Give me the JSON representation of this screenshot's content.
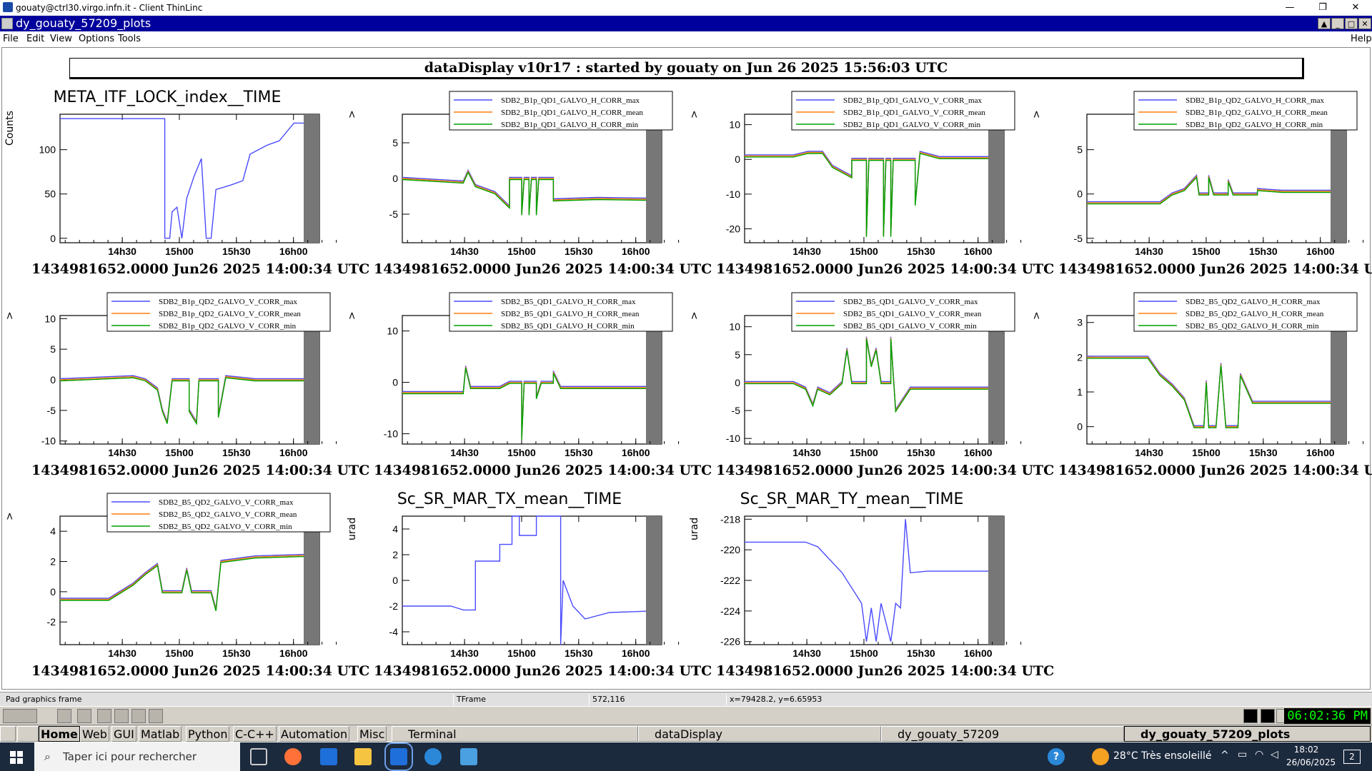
{
  "titlebar": {
    "title": "gouaty@ctrl30.virgo.infn.it - Client ThinLinc",
    "min": "—",
    "max": "❐",
    "close": "✕"
  },
  "root_window": {
    "title": "dy_gouaty_57209_plots"
  },
  "menu": {
    "file": "File",
    "edit": "Edit",
    "view": "View",
    "options": "Options",
    "tools": "Tools",
    "help": "Help"
  },
  "banner": "dataDisplay v10r17 : started by gouaty on Jun 26 2025 15:56:03 UTC",
  "time_labels": [
    "14h30",
    "15h00",
    "15h30",
    "16h00"
  ],
  "stamp": "1434981652.0000 Jun26 2025 14:00:34 UTC",
  "colors": {
    "max": "#4b4bff",
    "mean": "#ff7f0e",
    "min": "#00a000",
    "gray_band": "#777777",
    "root_title_bar": "#00009c"
  },
  "chart_data": [
    {
      "type": "line",
      "title": "META_ITF_LOCK_index__TIME",
      "ylabel": "Counts",
      "yticks": [
        "100",
        "50",
        "0"
      ],
      "ylim": [
        -5,
        140
      ],
      "series": [
        {
          "values": [
            [
              0,
              135
            ],
            [
              0.43,
              135
            ],
            [
              0.43,
              0
            ],
            [
              0.45,
              0
            ],
            [
              0.46,
              30
            ],
            [
              0.48,
              35
            ],
            [
              0.5,
              0
            ],
            [
              0.52,
              45
            ],
            [
              0.55,
              70
            ],
            [
              0.58,
              90
            ],
            [
              0.6,
              0
            ],
            [
              0.62,
              0
            ],
            [
              0.64,
              55
            ],
            [
              0.7,
              60
            ],
            [
              0.75,
              65
            ],
            [
              0.78,
              95
            ],
            [
              0.85,
              105
            ],
            [
              0.9,
              110
            ],
            [
              0.93,
              120
            ],
            [
              0.96,
              130
            ],
            [
              1,
              130
            ]
          ]
        }
      ]
    },
    {
      "type": "line",
      "ylabel": ">",
      "legend": [
        "SDB2_B1p_QD1_GALVO_H_CORR_max",
        "SDB2_B1p_QD1_GALVO_H_CORR_mean",
        "SDB2_B1p_QD1_GALVO_H_CORR_min"
      ],
      "yticks": [
        "5",
        "0",
        "-5"
      ],
      "ylim": [
        -9,
        9
      ],
      "series": [
        {
          "values": [
            [
              0,
              0
            ],
            [
              0.25,
              -0.5
            ],
            [
              0.27,
              1
            ],
            [
              0.3,
              -1
            ],
            [
              0.38,
              -2
            ],
            [
              0.44,
              -4
            ],
            [
              0.44,
              0
            ],
            [
              0.49,
              0
            ],
            [
              0.49,
              -5
            ],
            [
              0.5,
              0
            ],
            [
              0.52,
              0
            ],
            [
              0.52,
              -5
            ],
            [
              0.53,
              0
            ],
            [
              0.55,
              0
            ],
            [
              0.55,
              -5
            ],
            [
              0.56,
              0
            ],
            [
              0.62,
              0
            ],
            [
              0.62,
              -3
            ],
            [
              0.8,
              -2.8
            ],
            [
              1,
              -2.9
            ]
          ]
        }
      ]
    },
    {
      "type": "line",
      "ylabel": ">",
      "legend": [
        "SDB2_B1p_QD1_GALVO_V_CORR_max",
        "SDB2_B1p_QD1_GALVO_V_CORR_mean",
        "SDB2_B1p_QD1_GALVO_V_CORR_min"
      ],
      "yticks": [
        "10",
        "0",
        "-10",
        "-20"
      ],
      "ylim": [
        -24,
        13
      ],
      "series": [
        {
          "values": [
            [
              0,
              1
            ],
            [
              0.2,
              1
            ],
            [
              0.26,
              2
            ],
            [
              0.32,
              2
            ],
            [
              0.36,
              -2
            ],
            [
              0.44,
              -5
            ],
            [
              0.44,
              0
            ],
            [
              0.5,
              0
            ],
            [
              0.5,
              -22
            ],
            [
              0.51,
              0
            ],
            [
              0.57,
              0
            ],
            [
              0.57,
              -22
            ],
            [
              0.58,
              0
            ],
            [
              0.6,
              0
            ],
            [
              0.6,
              -22
            ],
            [
              0.61,
              0
            ],
            [
              0.7,
              0
            ],
            [
              0.7,
              -13
            ],
            [
              0.72,
              2
            ],
            [
              0.8,
              0.5
            ],
            [
              1,
              0.5
            ]
          ]
        }
      ]
    },
    {
      "type": "line",
      "ylabel": ">",
      "legend": [
        "SDB2_B1p_QD2_GALVO_H_CORR_max",
        "SDB2_B1p_QD2_GALVO_H_CORR_mean",
        "SDB2_B1p_QD2_GALVO_H_CORR_min"
      ],
      "yticks": [
        "5",
        "0",
        "-5"
      ],
      "ylim": [
        -5.5,
        9
      ],
      "series": [
        {
          "values": [
            [
              0,
              -1
            ],
            [
              0.3,
              -1
            ],
            [
              0.35,
              0
            ],
            [
              0.4,
              0.5
            ],
            [
              0.45,
              2
            ],
            [
              0.46,
              0
            ],
            [
              0.5,
              0
            ],
            [
              0.5,
              2
            ],
            [
              0.52,
              0
            ],
            [
              0.58,
              0
            ],
            [
              0.58,
              1.5
            ],
            [
              0.6,
              0
            ],
            [
              0.7,
              0
            ],
            [
              0.7,
              0.5
            ],
            [
              0.8,
              0.3
            ],
            [
              1,
              0.3
            ]
          ]
        }
      ]
    },
    {
      "type": "line",
      "ylabel": ">",
      "legend": [
        "SDB2_B1p_QD2_GALVO_V_CORR_max",
        "SDB2_B1p_QD2_GALVO_V_CORR_mean",
        "SDB2_B1p_QD2_GALVO_V_CORR_min"
      ],
      "yticks": [
        "10",
        "5",
        "0",
        "-5",
        "-10"
      ],
      "ylim": [
        -10.5,
        10.5
      ],
      "series": [
        {
          "values": [
            [
              0,
              0
            ],
            [
              0.3,
              0.5
            ],
            [
              0.35,
              0
            ],
            [
              0.4,
              -1.5
            ],
            [
              0.42,
              -5
            ],
            [
              0.44,
              -7
            ],
            [
              0.46,
              0
            ],
            [
              0.53,
              0
            ],
            [
              0.53,
              -5
            ],
            [
              0.56,
              -7
            ],
            [
              0.57,
              0
            ],
            [
              0.65,
              0
            ],
            [
              0.65,
              -6
            ],
            [
              0.68,
              0.5
            ],
            [
              0.8,
              0
            ],
            [
              1,
              0
            ]
          ]
        }
      ]
    },
    {
      "type": "line",
      "ylabel": ">",
      "legend": [
        "SDB2_B5_QD1_GALVO_H_CORR_max",
        "SDB2_B5_QD1_GALVO_H_CORR_mean",
        "SDB2_B5_QD1_GALVO_H_CORR_min"
      ],
      "yticks": [
        "10",
        "0",
        "-10"
      ],
      "ylim": [
        -12,
        13
      ],
      "series": [
        {
          "values": [
            [
              0,
              -2
            ],
            [
              0.25,
              -2
            ],
            [
              0.26,
              3
            ],
            [
              0.28,
              -1
            ],
            [
              0.4,
              -1
            ],
            [
              0.44,
              0
            ],
            [
              0.49,
              0
            ],
            [
              0.49,
              -11
            ],
            [
              0.5,
              0
            ],
            [
              0.55,
              0
            ],
            [
              0.55,
              -3
            ],
            [
              0.57,
              0
            ],
            [
              0.62,
              0
            ],
            [
              0.62,
              2
            ],
            [
              0.65,
              -1
            ],
            [
              1,
              -1
            ]
          ]
        }
      ]
    },
    {
      "type": "line",
      "ylabel": ">",
      "legend": [
        "SDB2_B5_QD1_GALVO_V_CORR_max",
        "SDB2_B5_QD1_GALVO_V_CORR_mean",
        "SDB2_B5_QD1_GALVO_V_CORR_min"
      ],
      "yticks": [
        "10",
        "5",
        "0",
        "-5",
        "-10"
      ],
      "ylim": [
        -11,
        12
      ],
      "series": [
        {
          "values": [
            [
              0,
              0
            ],
            [
              0.2,
              0
            ],
            [
              0.25,
              -1
            ],
            [
              0.28,
              -4
            ],
            [
              0.3,
              -1
            ],
            [
              0.35,
              -2
            ],
            [
              0.4,
              0
            ],
            [
              0.42,
              6
            ],
            [
              0.44,
              0
            ],
            [
              0.5,
              0
            ],
            [
              0.5,
              8
            ],
            [
              0.52,
              3
            ],
            [
              0.54,
              6
            ],
            [
              0.56,
              0
            ],
            [
              0.6,
              0
            ],
            [
              0.6,
              8
            ],
            [
              0.62,
              -5
            ],
            [
              0.65,
              -3
            ],
            [
              0.68,
              -1
            ],
            [
              1,
              -1
            ]
          ]
        }
      ]
    },
    {
      "type": "line",
      "ylabel": ">",
      "legend": [
        "SDB2_B5_QD2_GALVO_H_CORR_max",
        "SDB2_B5_QD2_GALVO_H_CORR_mean",
        "SDB2_B5_QD2_GALVO_H_CORR_min"
      ],
      "yticks": [
        "3",
        "2",
        "1",
        "0"
      ],
      "ylim": [
        -0.5,
        3.2
      ],
      "series": [
        {
          "values": [
            [
              0,
              2
            ],
            [
              0.25,
              2
            ],
            [
              0.3,
              1.5
            ],
            [
              0.35,
              1.2
            ],
            [
              0.4,
              0.8
            ],
            [
              0.44,
              0
            ],
            [
              0.48,
              0
            ],
            [
              0.49,
              1.3
            ],
            [
              0.5,
              0
            ],
            [
              0.53,
              0
            ],
            [
              0.55,
              1.8
            ],
            [
              0.57,
              0
            ],
            [
              0.62,
              0
            ],
            [
              0.63,
              1.5
            ],
            [
              0.68,
              0.7
            ],
            [
              1,
              0.7
            ]
          ]
        }
      ]
    },
    {
      "type": "line",
      "ylabel": ">",
      "legend": [
        "SDB2_B5_QD2_GALVO_V_CORR_max",
        "SDB2_B5_QD2_GALVO_V_CORR_mean",
        "SDB2_B5_QD2_GALVO_V_CORR_min"
      ],
      "yticks": [
        "4",
        "2",
        "0",
        "-2"
      ],
      "ylim": [
        -3.5,
        5
      ],
      "series": [
        {
          "values": [
            [
              0,
              -0.5
            ],
            [
              0.2,
              -0.5
            ],
            [
              0.25,
              0
            ],
            [
              0.3,
              0.5
            ],
            [
              0.35,
              1.2
            ],
            [
              0.4,
              1.8
            ],
            [
              0.42,
              0
            ],
            [
              0.5,
              0
            ],
            [
              0.52,
              1.5
            ],
            [
              0.54,
              0
            ],
            [
              0.62,
              0
            ],
            [
              0.64,
              -1.2
            ],
            [
              0.66,
              2
            ],
            [
              0.8,
              2.3
            ],
            [
              1,
              2.4
            ]
          ]
        }
      ]
    },
    {
      "type": "line",
      "title": "Sc_SR_MAR_TX_mean__TIME",
      "ylabel": "urad",
      "yticks": [
        "4",
        "2",
        "0",
        "-2",
        "-4"
      ],
      "ylim": [
        -5,
        5
      ],
      "series": [
        {
          "values": [
            [
              0,
              -2
            ],
            [
              0.2,
              -2
            ],
            [
              0.25,
              -2.3
            ],
            [
              0.3,
              -2.3
            ],
            [
              0.3,
              1.5
            ],
            [
              0.4,
              1.5
            ],
            [
              0.4,
              2.8
            ],
            [
              0.45,
              2.8
            ],
            [
              0.45,
              5
            ],
            [
              0.48,
              5
            ],
            [
              0.48,
              3.5
            ],
            [
              0.55,
              3.5
            ],
            [
              0.55,
              5
            ],
            [
              0.65,
              5
            ],
            [
              0.65,
              -5
            ],
            [
              0.66,
              0
            ],
            [
              0.7,
              -2
            ],
            [
              0.75,
              -3
            ],
            [
              0.85,
              -2.5
            ],
            [
              1,
              -2.4
            ]
          ]
        }
      ]
    },
    {
      "type": "line",
      "title": "Sc_SR_MAR_TY_mean__TIME",
      "ylabel": "urad",
      "yticks": [
        "-218",
        "-220",
        "-222",
        "-224",
        "-226"
      ],
      "ylim": [
        -226.2,
        -217.8
      ],
      "series": [
        {
          "values": [
            [
              0,
              -219.5
            ],
            [
              0.25,
              -219.5
            ],
            [
              0.3,
              -219.8
            ],
            [
              0.4,
              -221.5
            ],
            [
              0.48,
              -223.5
            ],
            [
              0.5,
              -226
            ],
            [
              0.52,
              -223.8
            ],
            [
              0.54,
              -226
            ],
            [
              0.56,
              -223.5
            ],
            [
              0.6,
              -226
            ],
            [
              0.62,
              -223.5
            ],
            [
              0.64,
              -223.8
            ],
            [
              0.66,
              -218
            ],
            [
              0.68,
              -221.5
            ],
            [
              0.75,
              -221.4
            ],
            [
              1,
              -221.4
            ]
          ]
        }
      ]
    }
  ],
  "statusbar": {
    "f1": "Pad graphics frame",
    "f2": "TFrame",
    "f3": "572,116",
    "f4": "x=79428.2, y=6.65953"
  },
  "thinlinc": {
    "clock": "06:02:36 PM",
    "tabs": [
      "Home",
      "Web",
      "GUI",
      "Matlab",
      "Python",
      "C-C++",
      "Automation",
      "Misc"
    ],
    "tasks": [
      "Terminal",
      "dataDisplay",
      "dy_gouaty_57209",
      "dy_gouaty_57209_plots"
    ]
  },
  "windows_taskbar": {
    "search_placeholder": "Taper ici pour rechercher",
    "weather": "28°C  Très ensoleillé",
    "time": "18:02",
    "date": "26/06/2025",
    "notif_count": "2"
  }
}
